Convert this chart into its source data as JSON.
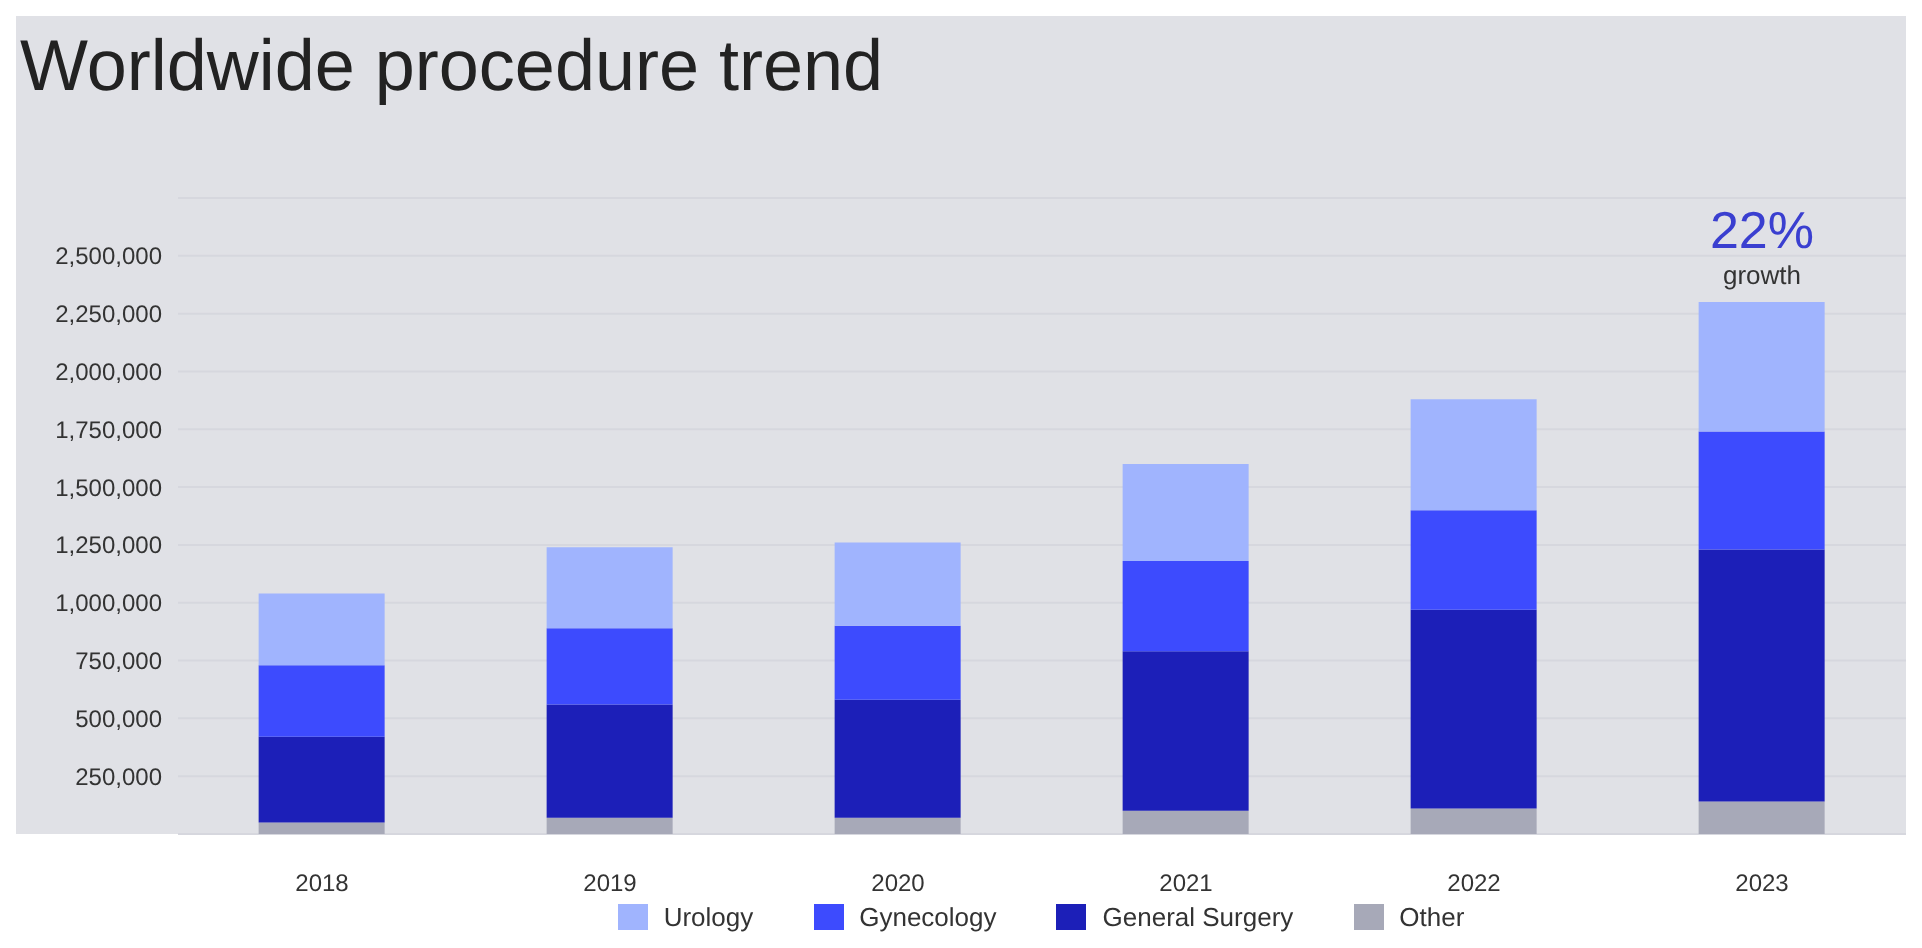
{
  "chart_data": {
    "type": "bar",
    "title": "Worldwide procedure trend",
    "stacked": true,
    "categories": [
      "2018",
      "2019",
      "2020",
      "2021",
      "2022",
      "2023"
    ],
    "series": [
      {
        "name": "Other",
        "color": "#a7a9b8",
        "values": [
          50000,
          70000,
          70000,
          100000,
          110000,
          140000
        ]
      },
      {
        "name": "General Surgery",
        "color": "#1c1fb8",
        "values": [
          370000,
          490000,
          510000,
          690000,
          860000,
          1090000
        ]
      },
      {
        "name": "Gynecology",
        "color": "#3d4bfe",
        "values": [
          310000,
          330000,
          320000,
          390000,
          430000,
          510000
        ]
      },
      {
        "name": "Urology",
        "color": "#a0b4fe",
        "values": [
          310000,
          350000,
          360000,
          420000,
          480000,
          560000
        ]
      }
    ],
    "ylim": [
      0,
      2750000
    ],
    "yticks": [
      {
        "value": 250000,
        "label": "250,000"
      },
      {
        "value": 500000,
        "label": "500,000"
      },
      {
        "value": 750000,
        "label": "750,000"
      },
      {
        "value": 1000000,
        "label": "1,000,000"
      },
      {
        "value": 1250000,
        "label": "1,250,000"
      },
      {
        "value": 1500000,
        "label": "1,500,000"
      },
      {
        "value": 1750000,
        "label": "1,750,000"
      },
      {
        "value": 2000000,
        "label": "2,000,000"
      },
      {
        "value": 2250000,
        "label": "2,250,000"
      },
      {
        "value": 2500000,
        "label": "2,500,000"
      }
    ],
    "grid": "y",
    "legend": "bottom",
    "annotations": [
      {
        "text": "22%",
        "x": "2023",
        "y": 2300000
      },
      {
        "text": "growth",
        "x": "2023",
        "y": 2300000
      }
    ]
  }
}
